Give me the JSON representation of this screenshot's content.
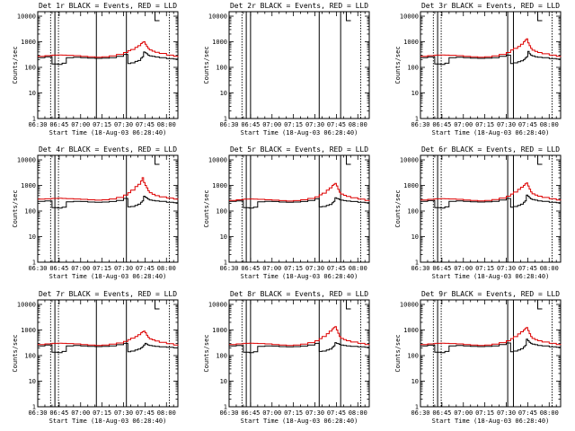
{
  "figure": {
    "panel_count": 9,
    "grid": "3x3"
  },
  "chart_data": {
    "type": "line",
    "shared": {
      "xlabel": "Start Time (18-Aug-03 06:28:40)",
      "ylabel": "Counts/sec",
      "x_tick_labels": [
        "06:30",
        "06:45",
        "07:00",
        "07:15",
        "07:30",
        "07:45",
        "08:00"
      ],
      "x_tick_minutes": [
        390,
        405,
        420,
        435,
        450,
        465,
        480
      ],
      "xlim_minutes": [
        390,
        488
      ],
      "y_scale": "log",
      "ylim": [
        1,
        15000
      ],
      "y_tick_labels": [
        "1",
        "10",
        "100",
        "1000",
        "10000"
      ],
      "y_tick_values": [
        1,
        10,
        100,
        1000,
        10000
      ],
      "series_names": [
        "Events",
        "LLD"
      ],
      "series_colors": {
        "Events": "#000000",
        "LLD": "#dd0000"
      },
      "x_minutes": [
        390,
        395,
        400,
        404,
        407,
        410,
        415,
        420,
        425,
        430,
        435,
        440,
        445,
        450,
        453,
        455,
        458,
        460,
        462,
        463,
        464,
        465,
        466,
        467,
        468,
        470,
        472,
        475,
        480,
        485,
        488
      ]
    },
    "panels": [
      {
        "title": "Det 1r BLACK = Events, RED = LLD",
        "dotted_markers": [
          399,
          404.5,
          482
        ],
        "solid_markers": [
          402,
          431,
          452
        ],
        "bracket_x": 472,
        "events": [
          240,
          260,
          135,
          130,
          145,
          240,
          250,
          240,
          230,
          225,
          230,
          240,
          270,
          320,
          140,
          150,
          170,
          185,
          230,
          260,
          400,
          370,
          340,
          300,
          280,
          270,
          255,
          240,
          220,
          210,
          200
        ],
        "lld": [
          270,
          285,
          300,
          305,
          300,
          295,
          285,
          270,
          260,
          250,
          260,
          280,
          320,
          380,
          450,
          500,
          600,
          700,
          850,
          950,
          1000,
          800,
          650,
          550,
          480,
          430,
          390,
          350,
          300,
          270,
          260
        ],
        "events_present": true
      },
      {
        "title": "Det 2r BLACK = Events, RED = LLD",
        "dotted_markers": [
          399,
          482
        ],
        "solid_markers": [
          402,
          405,
          453,
          468
        ],
        "bracket_x": 472,
        "events": [],
        "lld": [],
        "events_present": false
      },
      {
        "title": "Det 3r BLACK = Events, RED = LLD",
        "dotted_markers": [
          399,
          404.5,
          482
        ],
        "solid_markers": [
          402,
          451,
          455
        ],
        "bracket_x": 472,
        "events": [
          240,
          255,
          135,
          130,
          145,
          240,
          250,
          240,
          230,
          225,
          230,
          240,
          270,
          300,
          140,
          150,
          165,
          180,
          200,
          230,
          260,
          420,
          340,
          300,
          280,
          260,
          250,
          240,
          220,
          210,
          200
        ],
        "lld": [
          270,
          285,
          300,
          305,
          300,
          295,
          285,
          270,
          260,
          250,
          260,
          280,
          320,
          380,
          480,
          550,
          650,
          800,
          1000,
          1150,
          1300,
          900,
          700,
          560,
          470,
          420,
          380,
          340,
          300,
          270,
          260
        ],
        "events_present": true
      },
      {
        "title": "Det 4r BLACK = Events, RED = LLD",
        "dotted_markers": [
          399,
          404.5,
          482
        ],
        "solid_markers": [
          402,
          452
        ],
        "bracket_x": 472,
        "events": [
          240,
          250,
          135,
          130,
          140,
          230,
          240,
          235,
          225,
          220,
          225,
          235,
          260,
          310,
          145,
          150,
          165,
          185,
          220,
          250,
          380,
          350,
          320,
          290,
          270,
          260,
          250,
          240,
          220,
          210,
          200
        ],
        "lld": [
          290,
          300,
          310,
          315,
          310,
          305,
          295,
          285,
          275,
          265,
          275,
          295,
          340,
          420,
          520,
          650,
          900,
          1100,
          1500,
          2000,
          1300,
          1000,
          800,
          620,
          520,
          450,
          400,
          360,
          320,
          290,
          280
        ],
        "events_present": true
      },
      {
        "title": "Det 5r BLACK = Events, RED = LLD",
        "dotted_markers": [
          399,
          482
        ],
        "solid_markers": [
          402,
          405,
          453,
          468
        ],
        "bracket_x": 472,
        "events": [
          240,
          250,
          135,
          130,
          140,
          230,
          240,
          235,
          225,
          220,
          225,
          235,
          260,
          300,
          145,
          150,
          165,
          180,
          210,
          240,
          330,
          310,
          300,
          280,
          265,
          255,
          245,
          235,
          220,
          210,
          200
        ],
        "lld": [
          260,
          275,
          290,
          295,
          290,
          285,
          275,
          265,
          255,
          245,
          255,
          275,
          310,
          360,
          430,
          500,
          650,
          800,
          1000,
          1100,
          1200,
          950,
          700,
          540,
          460,
          410,
          370,
          330,
          290,
          260,
          250
        ],
        "events_present": true
      },
      {
        "title": "Det 6r BLACK = Events, RED = LLD",
        "dotted_markers": [
          399,
          404.5,
          482
        ],
        "solid_markers": [
          402,
          451,
          455
        ],
        "bracket_x": 472,
        "events": [
          240,
          255,
          135,
          130,
          145,
          240,
          250,
          240,
          230,
          225,
          230,
          240,
          270,
          310,
          140,
          150,
          165,
          185,
          220,
          250,
          420,
          380,
          330,
          300,
          280,
          265,
          250,
          240,
          220,
          210,
          200
        ],
        "lld": [
          270,
          285,
          300,
          305,
          300,
          295,
          285,
          270,
          260,
          250,
          260,
          280,
          320,
          380,
          460,
          550,
          700,
          850,
          1000,
          1150,
          1250,
          950,
          720,
          560,
          470,
          420,
          380,
          340,
          300,
          270,
          260
        ],
        "events_present": true
      },
      {
        "title": "Det 7r BLACK = Events, RED = LLD",
        "dotted_markers": [
          399,
          404.5,
          482
        ],
        "solid_markers": [
          402,
          431,
          452
        ],
        "bracket_x": 472,
        "events": [
          240,
          260,
          135,
          130,
          145,
          240,
          250,
          240,
          230,
          225,
          230,
          240,
          265,
          300,
          140,
          150,
          165,
          180,
          200,
          220,
          260,
          300,
          280,
          260,
          250,
          240,
          230,
          220,
          210,
          200,
          195
        ],
        "lld": [
          270,
          285,
          300,
          305,
          300,
          295,
          285,
          270,
          260,
          250,
          260,
          280,
          310,
          360,
          420,
          480,
          560,
          650,
          780,
          850,
          900,
          780,
          620,
          520,
          450,
          410,
          370,
          330,
          290,
          260,
          250
        ],
        "events_present": true
      },
      {
        "title": "Det 8r BLACK = Events, RED = LLD",
        "dotted_markers": [
          399,
          482
        ],
        "solid_markers": [
          402,
          405,
          453,
          468
        ],
        "bracket_x": 472,
        "events": [
          240,
          250,
          135,
          130,
          140,
          230,
          240,
          235,
          225,
          220,
          225,
          235,
          260,
          300,
          145,
          150,
          165,
          180,
          210,
          240,
          320,
          300,
          290,
          275,
          260,
          250,
          240,
          230,
          220,
          210,
          200
        ],
        "lld": [
          270,
          285,
          300,
          305,
          300,
          295,
          285,
          270,
          260,
          250,
          260,
          280,
          320,
          380,
          460,
          560,
          720,
          900,
          1100,
          1250,
          1350,
          1000,
          750,
          560,
          470,
          420,
          380,
          340,
          300,
          270,
          260
        ],
        "events_present": true
      },
      {
        "title": "Det 9r BLACK = Events, RED = LLD",
        "dotted_markers": [
          399,
          404.5,
          482
        ],
        "solid_markers": [
          402,
          451,
          455
        ],
        "bracket_x": 472,
        "events": [
          240,
          255,
          135,
          130,
          145,
          240,
          250,
          240,
          230,
          225,
          230,
          240,
          270,
          310,
          140,
          150,
          165,
          185,
          220,
          250,
          440,
          380,
          330,
          300,
          280,
          265,
          250,
          240,
          220,
          210,
          200
        ],
        "lld": [
          270,
          285,
          300,
          305,
          300,
          295,
          285,
          270,
          260,
          250,
          260,
          280,
          320,
          380,
          460,
          550,
          700,
          850,
          1000,
          1150,
          1250,
          950,
          720,
          560,
          470,
          420,
          380,
          340,
          300,
          270,
          260
        ],
        "events_present": true
      }
    ]
  }
}
